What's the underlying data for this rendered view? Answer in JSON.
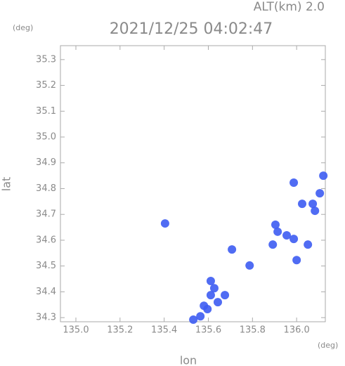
{
  "chart_data": {
    "type": "scatter",
    "title": "2021/12/25 04:02:47",
    "subtitle": "ALT(km) 2.0",
    "y_unit": "(deg)",
    "x_unit": "(deg)",
    "xlabel": "lon",
    "ylabel": "lat",
    "color": "#3d5cf2",
    "x": [
      135.611,
      135.643,
      135.675,
      135.596,
      135.564,
      135.532,
      135.611,
      135.627,
      135.58,
      135.707,
      135.787,
      135.404,
      135.904,
      135.914,
      135.955,
      135.987,
      135.892,
      136.051,
      136.0,
      135.987,
      136.025,
      136.073,
      136.105,
      136.121,
      136.083
    ],
    "values": [
      34.387,
      34.36,
      34.387,
      34.333,
      34.305,
      34.292,
      34.442,
      34.414,
      34.346,
      34.564,
      34.502,
      34.665,
      34.66,
      34.633,
      34.619,
      34.605,
      34.583,
      34.583,
      34.523,
      34.823,
      34.741,
      34.741,
      34.782,
      34.85,
      34.714
    ],
    "xlim": [
      134.93,
      136.13
    ],
    "ylim": [
      34.284,
      35.354
    ],
    "xticks": [
      {
        "value": 135.0,
        "label": "135.0"
      },
      135.2,
      135.4,
      135.6,
      135.8,
      {
        "value": 136.0,
        "label": "136.0"
      }
    ],
    "yticks": [
      35.3,
      35.2,
      35.1,
      {
        "value": 35.0,
        "label": "35.0"
      },
      34.9,
      34.8,
      34.7,
      34.6,
      34.5,
      34.4,
      34.3
    ]
  }
}
